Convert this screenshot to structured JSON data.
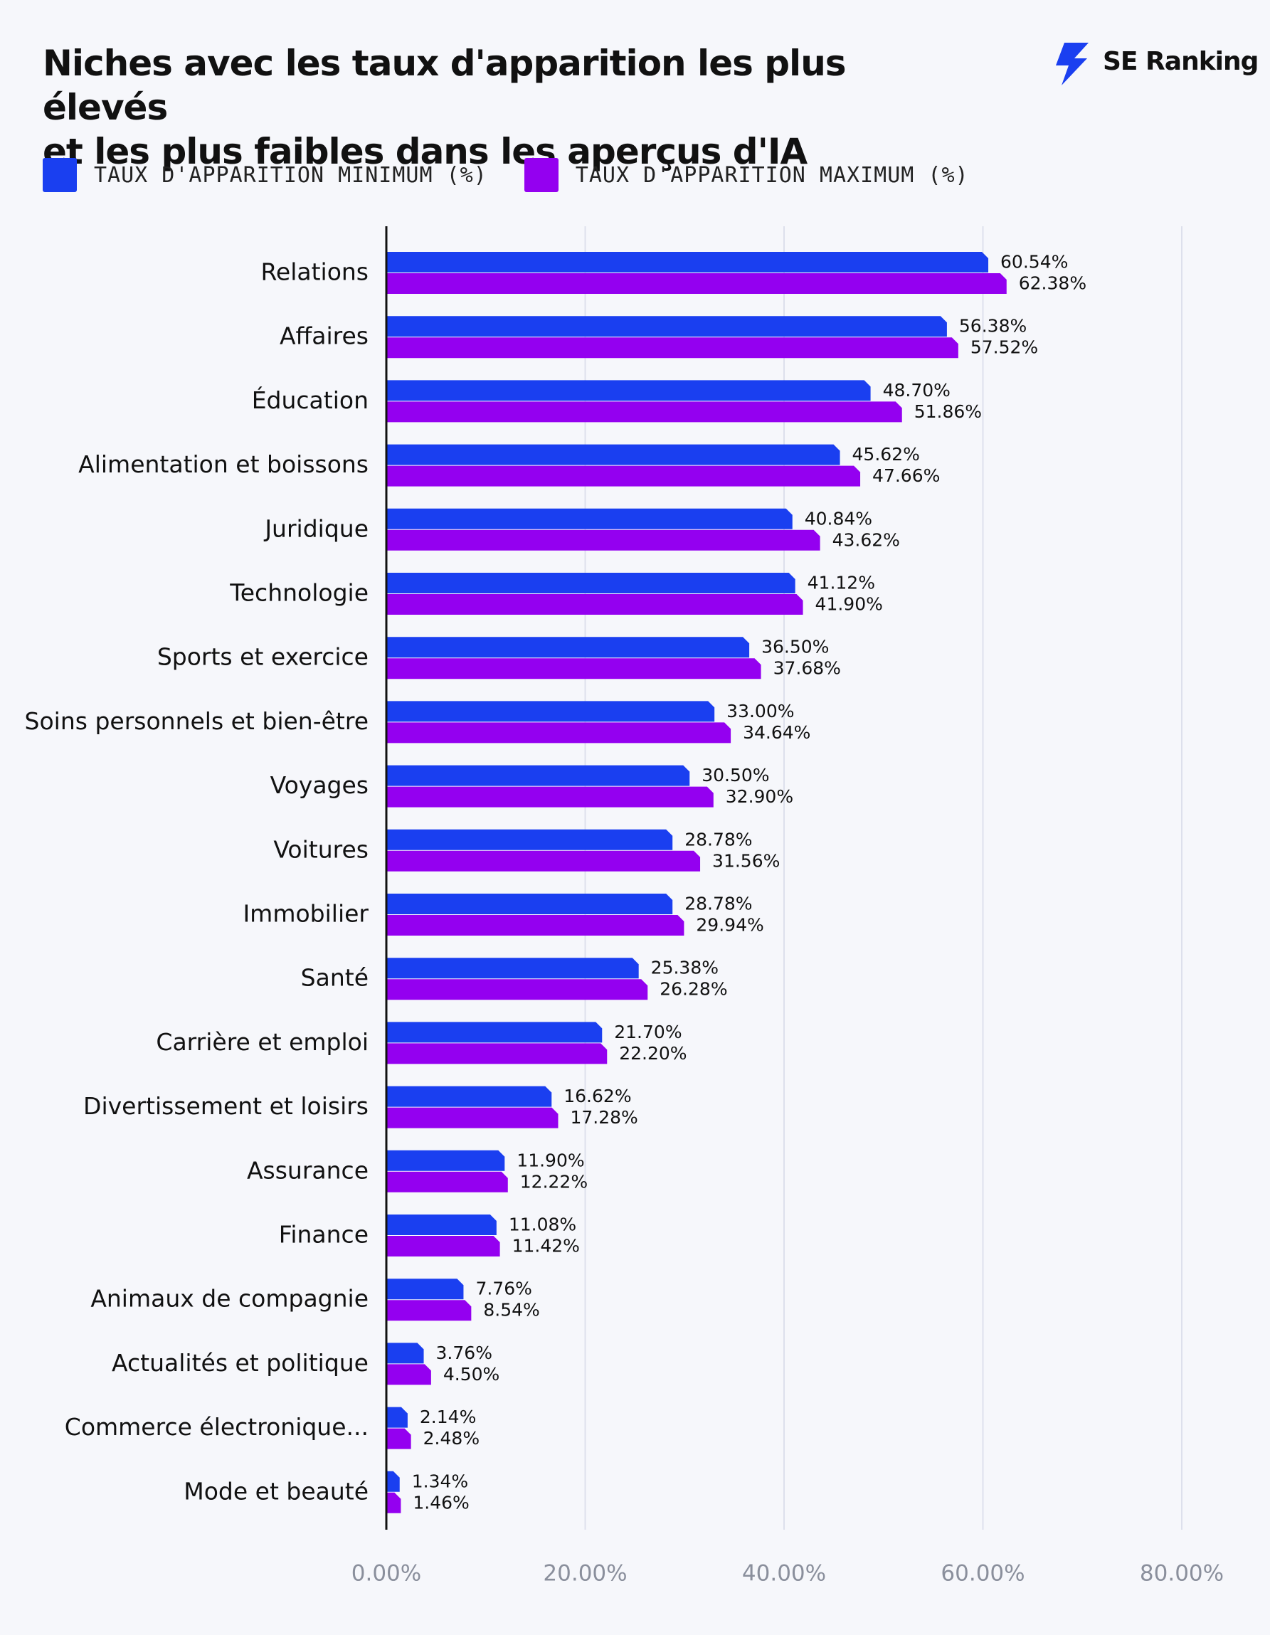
{
  "header": {
    "title_lines": [
      "Niches avec les taux d'apparition les plus élevés",
      "et les plus faibles dans les aperçus d'IA"
    ],
    "brand": "SE Ranking",
    "brand_icon": "se-ranking-bolt-icon"
  },
  "colors": {
    "min": "#1a3ff0",
    "max": "#9400f0",
    "axis": "#111111",
    "grid": "#dde0ec",
    "tick": "#8a8f9c"
  },
  "chart_data": {
    "type": "bar",
    "orientation": "horizontal",
    "title": "Niches avec les taux d'apparition les plus élevés et les plus faibles dans les aperçus d'IA",
    "xlabel": "",
    "ylabel": "",
    "xlim": [
      0,
      80
    ],
    "x_ticks": [
      "0.00%",
      "20.00%",
      "40.00%",
      "60.00%",
      "80.00%"
    ],
    "grid": "vertical",
    "legend_position": "top-left",
    "categories": [
      "Relations",
      "Affaires",
      "Éducation",
      "Alimentation et boissons",
      "Juridique",
      "Technologie",
      "Sports et exercice",
      "Soins personnels et bien-être",
      "Voyages",
      "Voitures",
      "Immobilier",
      "Santé",
      "Carrière et emploi",
      "Divertissement et loisirs",
      "Assurance",
      "Finance",
      "Animaux de compagnie",
      "Actualités et politique",
      "Commerce électronique...",
      "Mode et beauté"
    ],
    "series": [
      {
        "name": "TAUX D'APPARITION MINIMUM (%)",
        "values": [
          60.54,
          56.38,
          48.7,
          45.62,
          40.84,
          41.12,
          36.5,
          33.0,
          30.5,
          28.78,
          28.78,
          25.38,
          21.7,
          16.62,
          11.9,
          11.08,
          7.76,
          3.76,
          2.14,
          1.34
        ],
        "labels": [
          "60.54%",
          "56.38%",
          "48.70%",
          "45.62%",
          "40.84%",
          "41.12%",
          "36.50%",
          "33.00%",
          "30.50%",
          "28.78%",
          "28.78%",
          "25.38%",
          "21.70%",
          "16.62%",
          "11.90%",
          "11.08%",
          "7.76%",
          "3.76%",
          "2.14%",
          "1.34%"
        ]
      },
      {
        "name": "TAUX D'APPARITION MAXIMUM (%)",
        "values": [
          62.38,
          57.52,
          51.86,
          47.66,
          43.62,
          41.9,
          37.68,
          34.64,
          32.9,
          31.56,
          29.94,
          26.28,
          22.2,
          17.28,
          12.22,
          11.42,
          8.54,
          4.5,
          2.48,
          1.46
        ],
        "labels": [
          "62.38%",
          "57.52%",
          "51.86%",
          "47.66%",
          "43.62%",
          "41.90%",
          "37.68%",
          "34.64%",
          "32.90%",
          "31.56%",
          "29.94%",
          "26.28%",
          "22.20%",
          "17.28%",
          "12.22%",
          "11.42%",
          "8.54%",
          "4.50%",
          "2.48%",
          "1.46%"
        ]
      }
    ]
  }
}
